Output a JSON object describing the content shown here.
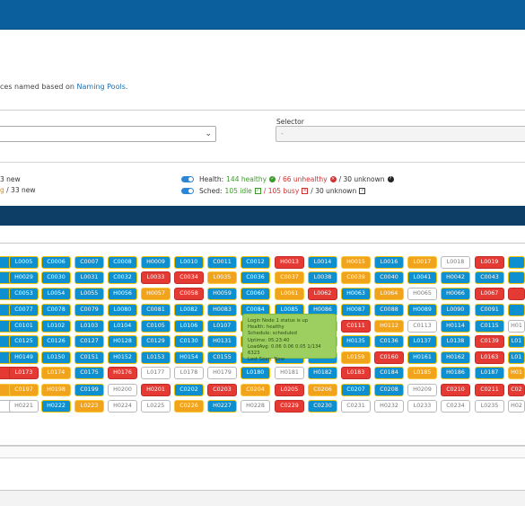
{
  "description": {
    "text": "ces named based on ",
    "link": "Naming Pools",
    "suffix": "."
  },
  "selector": {
    "label": "Selector",
    "placeholder": "-"
  },
  "left_stats": {
    "line1": "3 new",
    "line2_orange": "g",
    "line2_rest": " / 33 new"
  },
  "health": {
    "label": "Health:",
    "healthy": "144 healthy",
    "unhealthy": "/ 66 unhealthy",
    "unknown": "/ 30 unknown"
  },
  "sched": {
    "label": "Sched:",
    "idle": "105 idle",
    "busy": "/ 105 busy",
    "unknown": "/ 30 unknown"
  },
  "status_colors": {
    "healthy_blue": "#0e8fcf",
    "busy_orange": "#f2a31c",
    "unhealthy_red": "#e53a34",
    "unknown_white": "#ffffff"
  },
  "tooltip": {
    "line1": "Login Node 1 status is up",
    "line2": "Health: healthy",
    "line3": "Schedule: scheduled",
    "line4": "Uptime: 05:23:40",
    "line5": "LoadAvg: 0.06 0.06 0.05 1/134 6323",
    "line6": "Last Seen: Now"
  },
  "grid": [
    [
      [
        "",
        "b"
      ],
      [
        "L0005",
        "b"
      ],
      [
        "C0006",
        "b"
      ],
      [
        "C0007",
        "b"
      ],
      [
        "C0008",
        "b"
      ],
      [
        "H0009",
        "b"
      ],
      [
        "L0010",
        "b"
      ],
      [
        "C0011",
        "b"
      ],
      [
        "C0012",
        "b"
      ],
      [
        "H0013",
        "r"
      ],
      [
        "L0014",
        "b"
      ],
      [
        "H0015",
        "o"
      ],
      [
        "L0016",
        "b"
      ],
      [
        "L0017",
        "o"
      ],
      [
        "L0018",
        "w"
      ],
      [
        "L0019",
        "r"
      ],
      [
        "",
        "b"
      ]
    ],
    [
      [
        "",
        "b"
      ],
      [
        "H0029",
        "b"
      ],
      [
        "C0030",
        "b"
      ],
      [
        "L0031",
        "b"
      ],
      [
        "C0032",
        "b"
      ],
      [
        "L0033",
        "r"
      ],
      [
        "C0034",
        "r"
      ],
      [
        "L0035",
        "o"
      ],
      [
        "C0036",
        "b"
      ],
      [
        "C0037",
        "o"
      ],
      [
        "L0038",
        "b"
      ],
      [
        "C0039",
        "o"
      ],
      [
        "C0040",
        "b"
      ],
      [
        "L0041",
        "b"
      ],
      [
        "H0042",
        "b"
      ],
      [
        "C0043",
        "b"
      ],
      [
        "",
        "b"
      ]
    ],
    [
      [
        "",
        "b"
      ],
      [
        "C0053",
        "b"
      ],
      [
        "L0054",
        "b"
      ],
      [
        "L0055",
        "b"
      ],
      [
        "H0056",
        "b"
      ],
      [
        "H0057",
        "o"
      ],
      [
        "C0058",
        "r"
      ],
      [
        "H0059",
        "b"
      ],
      [
        "C0060",
        "b"
      ],
      [
        "L0061",
        "o"
      ],
      [
        "L0062",
        "r"
      ],
      [
        "H0063",
        "b"
      ],
      [
        "L0064",
        "o"
      ],
      [
        "H0065",
        "w"
      ],
      [
        "H0066",
        "b"
      ],
      [
        "L0067",
        "r"
      ],
      [
        "",
        "r"
      ]
    ],
    [
      [
        "",
        "b"
      ],
      [
        "C0077",
        "b"
      ],
      [
        "C0078",
        "b"
      ],
      [
        "C0079",
        "b"
      ],
      [
        "L0080",
        "b"
      ],
      [
        "C0081",
        "b"
      ],
      [
        "L0082",
        "b"
      ],
      [
        "H0083",
        "b"
      ],
      [
        "C0084",
        "b"
      ],
      [
        "L0085",
        "b"
      ],
      [
        "H0086",
        "b"
      ],
      [
        "H0087",
        "b"
      ],
      [
        "C0088",
        "b"
      ],
      [
        "H0089",
        "b"
      ],
      [
        "L0090",
        "b"
      ],
      [
        "C0091",
        "b"
      ],
      [
        "",
        "b"
      ]
    ],
    [
      [
        "",
        "b"
      ],
      [
        "C0101",
        "b"
      ],
      [
        "L0102",
        "b"
      ],
      [
        "L0103",
        "b"
      ],
      [
        "L0104",
        "b"
      ],
      [
        "C0105",
        "b"
      ],
      [
        "L0106",
        "b"
      ],
      [
        "L0107",
        "b"
      ],
      [
        "",
        "b"
      ],
      [
        "",
        "b"
      ],
      [
        "",
        "b"
      ],
      [
        "C0111",
        "r"
      ],
      [
        "H0112",
        "o"
      ],
      [
        "C0113",
        "w"
      ],
      [
        "H0114",
        "b"
      ],
      [
        "C0115",
        "b"
      ],
      [
        "H01",
        "w"
      ]
    ],
    [
      [
        "",
        "b"
      ],
      [
        "C0125",
        "b"
      ],
      [
        "C0126",
        "b"
      ],
      [
        "C0127",
        "b"
      ],
      [
        "H0128",
        "b"
      ],
      [
        "C0129",
        "b"
      ],
      [
        "C0130",
        "b"
      ],
      [
        "H0131",
        "b"
      ],
      [
        "",
        "b"
      ],
      [
        "",
        "b"
      ],
      [
        "",
        "b"
      ],
      [
        "H0135",
        "b"
      ],
      [
        "C0136",
        "b"
      ],
      [
        "L0137",
        "b"
      ],
      [
        "L0138",
        "b"
      ],
      [
        "C0139",
        "r"
      ],
      [
        "L01",
        "b"
      ]
    ],
    [
      [
        "",
        "b"
      ],
      [
        "H0149",
        "b"
      ],
      [
        "L0150",
        "b"
      ],
      [
        "C0151",
        "b"
      ],
      [
        "H0152",
        "b"
      ],
      [
        "L0153",
        "b"
      ],
      [
        "H0154",
        "b"
      ],
      [
        "C0155",
        "b"
      ],
      [
        "",
        "b"
      ],
      [
        "",
        "b"
      ],
      [
        "",
        "b"
      ],
      [
        "L0159",
        "o"
      ],
      [
        "C0160",
        "r"
      ],
      [
        "H0161",
        "b"
      ],
      [
        "H0162",
        "b"
      ],
      [
        "L0163",
        "r"
      ],
      [
        "L01",
        "b"
      ]
    ],
    [
      [
        "",
        "r"
      ],
      [
        "L0173",
        "r"
      ],
      [
        "L0174",
        "o"
      ],
      [
        "C0175",
        "b"
      ],
      [
        "H0176",
        "r"
      ],
      [
        "L0177",
        "w"
      ],
      [
        "L0178",
        "w"
      ],
      [
        "H0179",
        "w"
      ],
      [
        "L0180",
        "b"
      ],
      [
        "H0181",
        "w"
      ],
      [
        "H0182",
        "b"
      ],
      [
        "L0183",
        "r"
      ],
      [
        "C0184",
        "b"
      ],
      [
        "L0185",
        "o"
      ],
      [
        "H0186",
        "b"
      ],
      [
        "L0187",
        "b"
      ],
      [
        "H01",
        "o"
      ]
    ],
    [
      [
        "",
        "o"
      ],
      [
        "C0197",
        "o"
      ],
      [
        "H0198",
        "o"
      ],
      [
        "C0199",
        "b"
      ],
      [
        "H0200",
        "w"
      ],
      [
        "H0201",
        "r"
      ],
      [
        "C0202",
        "b"
      ],
      [
        "C0203",
        "r"
      ],
      [
        "C0204",
        "o"
      ],
      [
        "L0205",
        "r"
      ],
      [
        "C0206",
        "o"
      ],
      [
        "C0207",
        "b"
      ],
      [
        "C0208",
        "b"
      ],
      [
        "H0209",
        "w"
      ],
      [
        "C0210",
        "r"
      ],
      [
        "C0211",
        "r"
      ],
      [
        "C02",
        "r"
      ]
    ],
    [
      [
        "",
        "w"
      ],
      [
        "H0221",
        "w"
      ],
      [
        "H0222",
        "b"
      ],
      [
        "L0223",
        "o"
      ],
      [
        "H0224",
        "w"
      ],
      [
        "L0225",
        "w"
      ],
      [
        "C0226",
        "o"
      ],
      [
        "H0227",
        "b"
      ],
      [
        "H0228",
        "w"
      ],
      [
        "C0229",
        "r"
      ],
      [
        "C0230",
        "b"
      ],
      [
        "C0231",
        "w"
      ],
      [
        "H0232",
        "w"
      ],
      [
        "L0233",
        "w"
      ],
      [
        "C0234",
        "w"
      ],
      [
        "L0235",
        "w"
      ],
      [
        "H02",
        "w"
      ]
    ]
  ]
}
